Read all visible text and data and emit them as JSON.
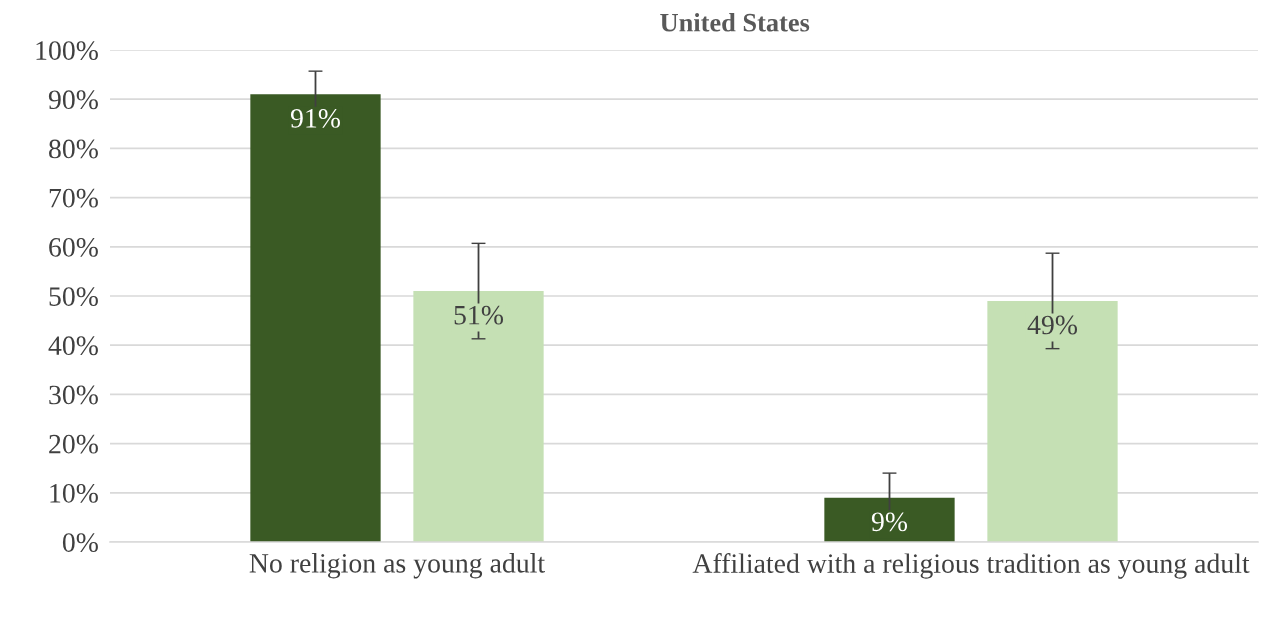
{
  "chart_data": {
    "type": "bar",
    "title": "United States",
    "categories": [
      "No religion as young adult",
      "Affiliated with a religious tradition as young adult"
    ],
    "series": [
      {
        "color": "#3a5a24",
        "values": [
          91,
          9
        ],
        "errors": [
          4.7,
          5
        ],
        "value_labels": [
          "91%",
          "9%"
        ]
      },
      {
        "color": "#c5e0b4",
        "values": [
          51,
          49
        ],
        "errors": [
          9.7,
          9.7
        ],
        "value_labels": [
          "51%",
          "49%"
        ]
      }
    ],
    "ylim": [
      0,
      100
    ],
    "yticks": [
      {
        "value": 0,
        "label": "0%"
      },
      {
        "value": 10,
        "label": "10%"
      },
      {
        "value": 20,
        "label": "20%"
      },
      {
        "value": 30,
        "label": "30%"
      },
      {
        "value": 40,
        "label": "40%"
      },
      {
        "value": 50,
        "label": "50%"
      },
      {
        "value": 60,
        "label": "60%"
      },
      {
        "value": 70,
        "label": "70%"
      },
      {
        "value": 80,
        "label": "80%"
      },
      {
        "value": 90,
        "label": "90%"
      },
      {
        "value": 100,
        "label": "100%"
      }
    ],
    "grid": "y"
  }
}
